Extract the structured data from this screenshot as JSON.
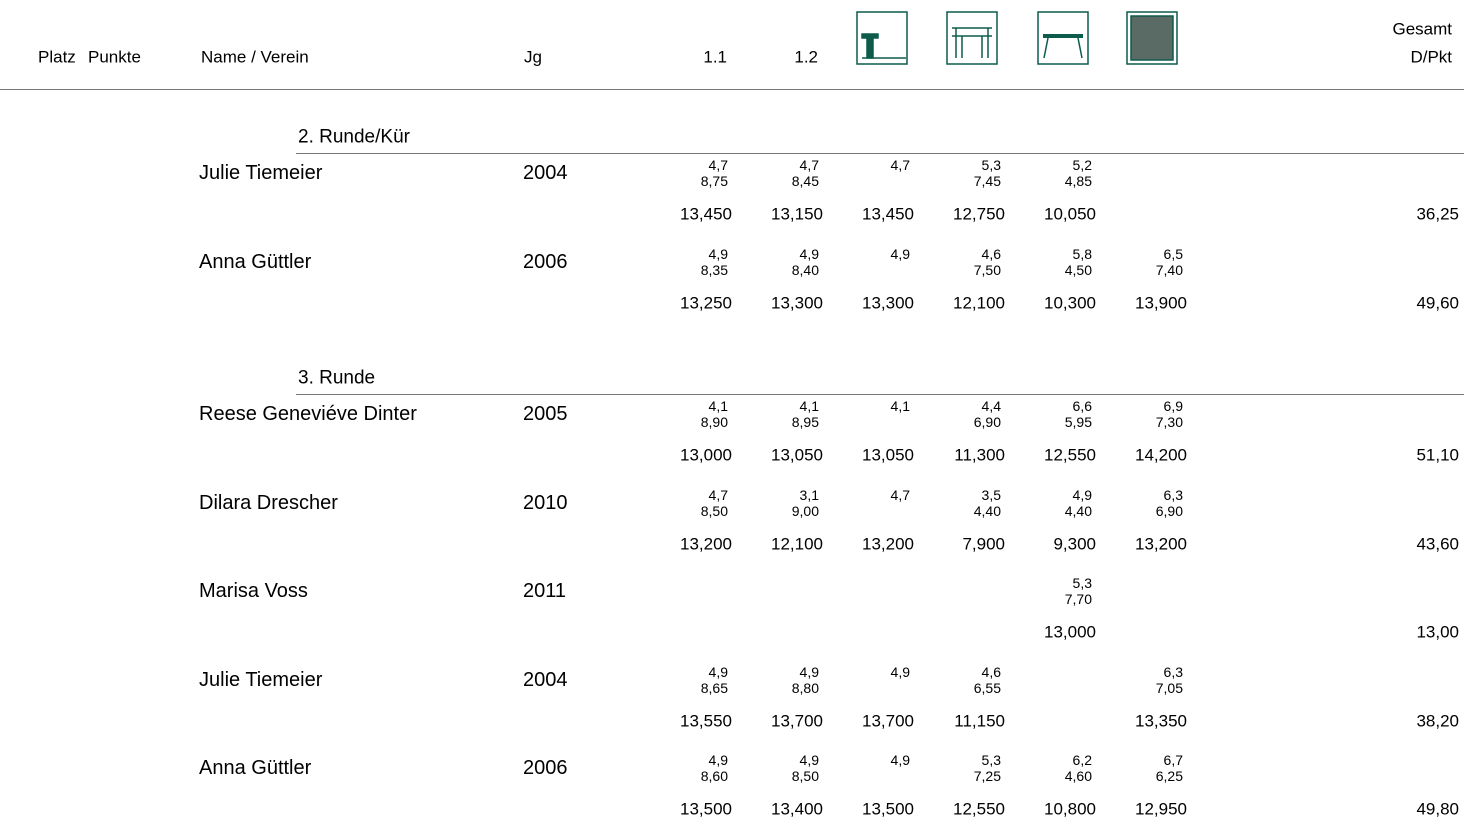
{
  "header": {
    "columns": [
      "Platz",
      "Punkte",
      "Name / Verein",
      "Jg",
      "1.1",
      "1.2"
    ],
    "total": [
      "Gesamt",
      "D/Pkt"
    ]
  },
  "sections": [
    {
      "title": "2. Runde/Kür",
      "athletes": [
        {
          "name": "Julie Tiemeier",
          "year": "2004",
          "cells": [
            {
              "d": "4,7",
              "e": "8,75",
              "score": "13,450"
            },
            {
              "d": "4,7",
              "e": "8,45",
              "score": "13,150"
            },
            {
              "d": "4,7",
              "score": "13,450"
            },
            {
              "d": "5,3",
              "e": "7,45",
              "score": "12,750"
            },
            {
              "d": "5,2",
              "e": "4,85",
              "score": "10,050"
            },
            null
          ],
          "total": "36,25"
        },
        {
          "name": "Anna Güttler",
          "year": "2006",
          "cells": [
            {
              "d": "4,9",
              "e": "8,35",
              "score": "13,250"
            },
            {
              "d": "4,9",
              "e": "8,40",
              "score": "13,300"
            },
            {
              "d": "4,9",
              "score": "13,300"
            },
            {
              "d": "4,6",
              "e": "7,50",
              "score": "12,100"
            },
            {
              "d": "5,8",
              "e": "4,50",
              "score": "10,300"
            },
            {
              "d": "6,5",
              "e": "7,40",
              "score": "13,900"
            }
          ],
          "total": "49,60"
        }
      ]
    },
    {
      "title": "3. Runde",
      "athletes": [
        {
          "name": "Reese Geneviéve Dinter",
          "year": "2005",
          "cells": [
            {
              "d": "4,1",
              "e": "8,90",
              "score": "13,000"
            },
            {
              "d": "4,1",
              "e": "8,95",
              "score": "13,050"
            },
            {
              "d": "4,1",
              "score": "13,050"
            },
            {
              "d": "4,4",
              "e": "6,90",
              "score": "11,300"
            },
            {
              "d": "6,6",
              "e": "5,95",
              "score": "12,550"
            },
            {
              "d": "6,9",
              "e": "7,30",
              "score": "14,200"
            }
          ],
          "total": "51,10"
        },
        {
          "name": "Dilara Drescher",
          "year": "2010",
          "cells": [
            {
              "d": "4,7",
              "e": "8,50",
              "score": "13,200"
            },
            {
              "d": "3,1",
              "e": "9,00",
              "score": "12,100"
            },
            {
              "d": "4,7",
              "score": "13,200"
            },
            {
              "d": "3,5",
              "e": "4,40",
              "score": "7,900"
            },
            {
              "d": "4,9",
              "e": "4,40",
              "score": "9,300"
            },
            {
              "d": "6,3",
              "e": "6,90",
              "score": "13,200"
            }
          ],
          "total": "43,60"
        },
        {
          "name": "Marisa Voss",
          "year": "2011",
          "cells": [
            null,
            null,
            null,
            null,
            {
              "d": "5,3",
              "e": "7,70",
              "score": "13,000"
            },
            null
          ],
          "total": "13,00"
        },
        {
          "name": "Julie Tiemeier",
          "year": "2004",
          "cells": [
            {
              "d": "4,9",
              "e": "8,65",
              "score": "13,550"
            },
            {
              "d": "4,9",
              "e": "8,80",
              "score": "13,700"
            },
            {
              "d": "4,9",
              "score": "13,700"
            },
            {
              "d": "4,6",
              "e": "6,55",
              "score": "11,150"
            },
            null,
            {
              "d": "6,3",
              "e": "7,05",
              "score": "13,350"
            }
          ],
          "total": "38,20"
        },
        {
          "name": "Anna Güttler",
          "year": "2006",
          "cells": [
            {
              "d": "4,9",
              "e": "8,60",
              "score": "13,500"
            },
            {
              "d": "4,9",
              "e": "8,50",
              "score": "13,400"
            },
            {
              "d": "4,9",
              "score": "13,500"
            },
            {
              "d": "5,3",
              "e": "7,25",
              "score": "12,550"
            },
            {
              "d": "6,2",
              "e": "4,60",
              "score": "10,800"
            },
            {
              "d": "6,7",
              "e": "6,25",
              "score": "12,950"
            }
          ],
          "total": "49,80"
        }
      ]
    }
  ]
}
